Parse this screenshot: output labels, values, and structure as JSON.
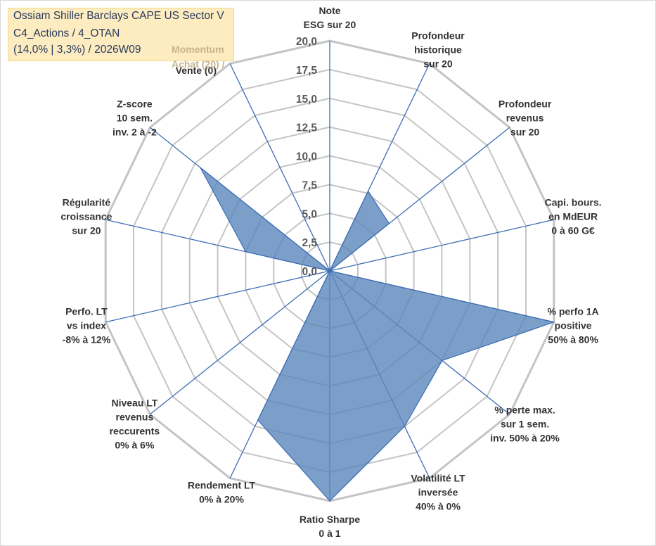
{
  "title": {
    "line1": "Ossiam Shiller Barclays CAPE US Sector V",
    "line2": "C4_Actions / 4_OTAN",
    "line3": "(14,0% | 3,3%) / 2026W09"
  },
  "legend": {
    "momentum_line1": "Momentum",
    "momentum_line2": "Achat (20) /",
    "sell_label": "Vente (0)"
  },
  "colors": {
    "fill": "#5b87bb",
    "spoke": "#3d6cb4",
    "grid": "#c4c4c4"
  },
  "chart_data": {
    "type": "radar",
    "title": "Ossiam Shiller Barclays CAPE US Sector V",
    "rlim": [
      0,
      20
    ],
    "ticks": [
      "0,0",
      "2,5",
      "5,0",
      "7,5",
      "10,0",
      "12,5",
      "15,0",
      "17,5",
      "20,0"
    ],
    "tick_values": [
      0,
      2.5,
      5,
      7.5,
      10,
      12.5,
      15,
      17.5,
      20
    ],
    "grid_rings": [
      2.5,
      5,
      7.5,
      10,
      12.5,
      15,
      17.5,
      20
    ],
    "axes": [
      {
        "label": [
          "Note",
          "ESG sur 20"
        ],
        "value": 0
      },
      {
        "label": [
          "Profondeur",
          "historique",
          "sur 20"
        ],
        "value": 7.7
      },
      {
        "label": [
          "Profondeur",
          "revenus",
          "sur 20"
        ],
        "value": 6.6
      },
      {
        "label": [
          "Capi. bours.",
          "en MdEUR",
          "0 à 60 G€"
        ],
        "value": 0
      },
      {
        "label": [
          "% perfo 1A",
          "positive",
          "50% à 80%"
        ],
        "value": 20
      },
      {
        "label": [
          "% perte max.",
          "sur 1 sem.",
          "inv. 50% à 20%"
        ],
        "value": 12.5
      },
      {
        "label": [
          "Volatilité LT",
          "inversée",
          "40% à 0%"
        ],
        "value": 15
      },
      {
        "label": [
          "Ratio Sharpe",
          "0 à 1"
        ],
        "value": 20
      },
      {
        "label": [
          "Rendement LT",
          "0% à 20%"
        ],
        "value": 14.4
      },
      {
        "label": [
          "Niveau LT",
          "revenus",
          "reccurents",
          "0% à 6%"
        ],
        "value": 0
      },
      {
        "label": [
          "Perfo. LT",
          "vs index",
          "-8% à 12%"
        ],
        "value": 0
      },
      {
        "label": [
          "Régularité",
          "croissance",
          "sur 20"
        ],
        "value": 7.5
      },
      {
        "label": [
          "Z-score",
          "10 sem.",
          "inv. 2 à -2"
        ],
        "value": 14.4
      },
      {
        "label": [
          "Momentum",
          "Achat (20) /",
          "Vente (0)"
        ],
        "value": 0
      }
    ]
  }
}
